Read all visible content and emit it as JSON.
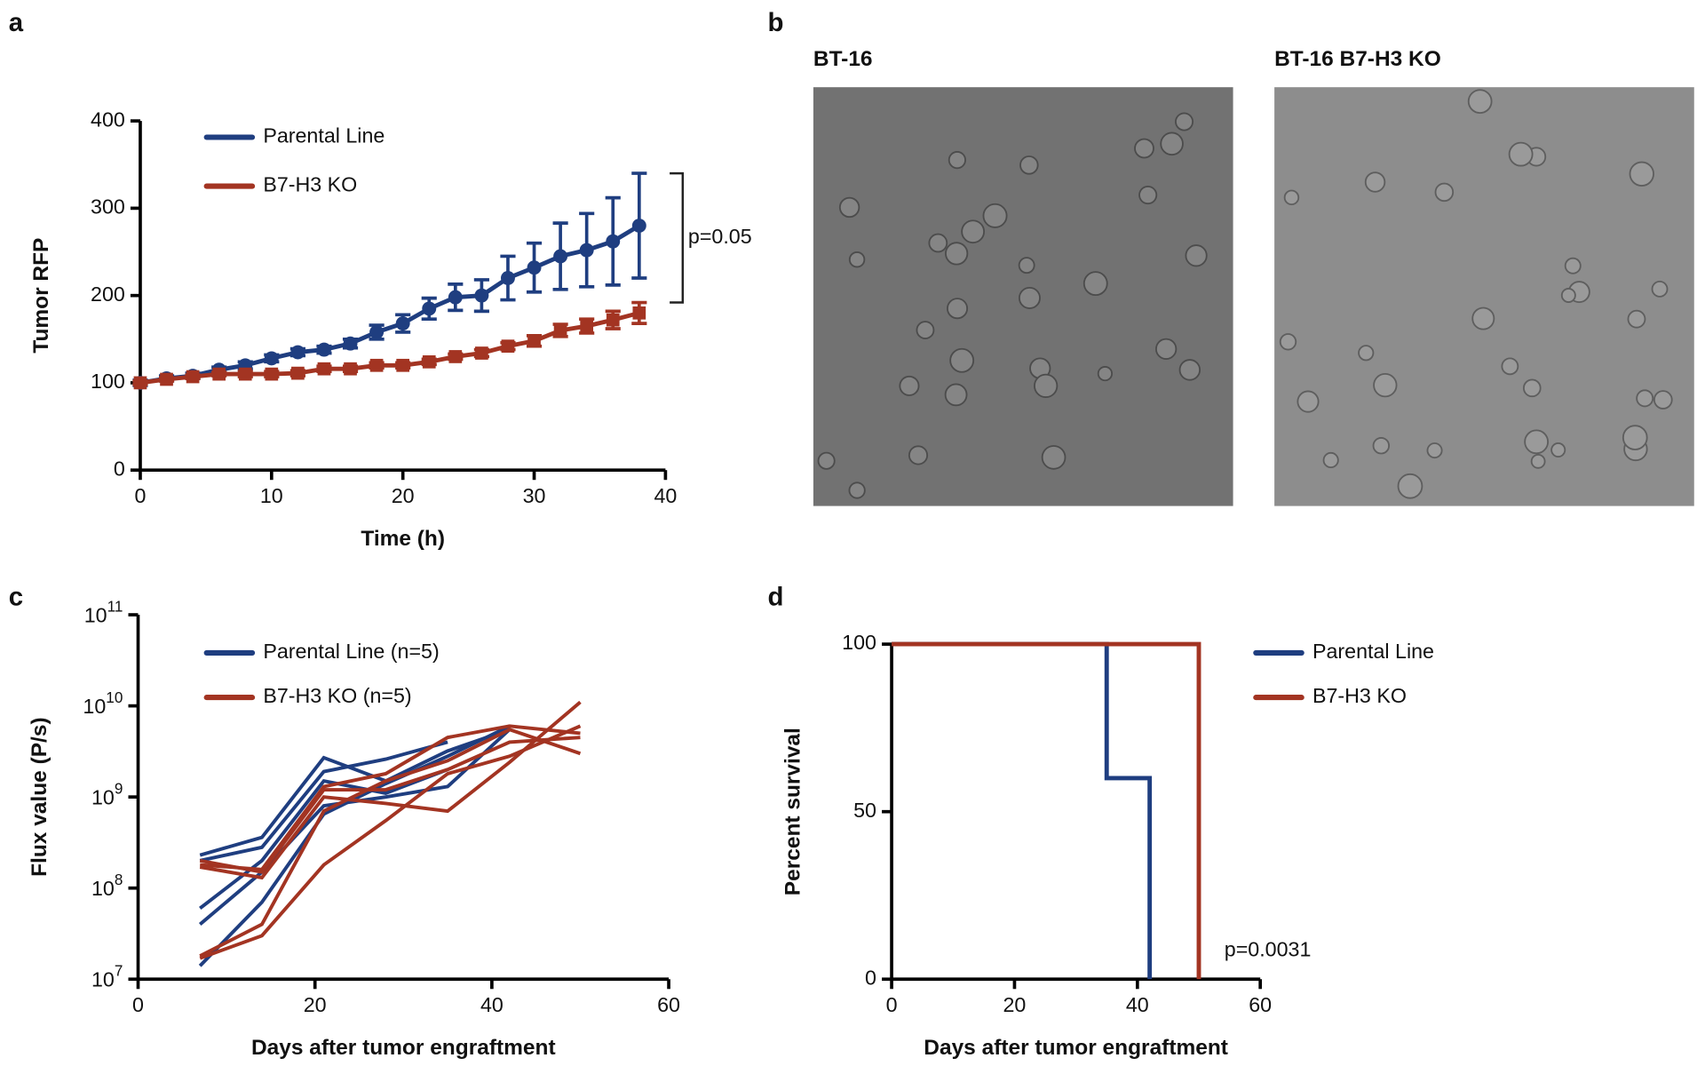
{
  "chart_data": [
    {
      "type": "line",
      "panel": "a",
      "xlabel": "Time (h)",
      "ylabel": "Tumor RFP",
      "x": [
        0,
        2,
        4,
        6,
        8,
        10,
        12,
        14,
        16,
        18,
        20,
        22,
        24,
        26,
        28,
        30,
        32,
        34,
        36,
        38
      ],
      "xlim": [
        0,
        40
      ],
      "xticks": [
        0,
        10,
        20,
        30,
        40
      ],
      "ylim": [
        0,
        400
      ],
      "yticks": [
        0,
        100,
        200,
        300,
        400
      ],
      "annotation": "p=0.05",
      "series": [
        {
          "name": "Parental Line",
          "color": "#1f3e80",
          "marker": "circle",
          "values": [
            100,
            105,
            108,
            115,
            120,
            128,
            135,
            138,
            145,
            158,
            168,
            185,
            198,
            200,
            220,
            232,
            245,
            252,
            262,
            280
          ],
          "errors": [
            3,
            3,
            3,
            3,
            4,
            4,
            4,
            4,
            5,
            8,
            10,
            12,
            15,
            18,
            25,
            28,
            38,
            42,
            50,
            60
          ]
        },
        {
          "name": "B7-H3 KO",
          "color": "#a33422",
          "marker": "square",
          "values": [
            100,
            104,
            107,
            110,
            110,
            110,
            111,
            116,
            116,
            120,
            120,
            124,
            130,
            134,
            142,
            148,
            160,
            165,
            172,
            180
          ],
          "errors": [
            2,
            2,
            2,
            2,
            3,
            3,
            3,
            3,
            3,
            3,
            3,
            3,
            3,
            4,
            4,
            6,
            7,
            8,
            10,
            12
          ]
        }
      ]
    },
    {
      "type": "image",
      "panel": "b",
      "images": [
        {
          "title": "BT-16"
        },
        {
          "title": "BT-16 B7-H3 KO"
        }
      ]
    },
    {
      "type": "line",
      "panel": "c",
      "xlabel": "Days after tumor engraftment",
      "ylabel": "Flux value (P/s)",
      "log_y": true,
      "xlim": [
        0,
        60
      ],
      "xticks": [
        0,
        20,
        40,
        60
      ],
      "ylim": [
        10000000,
        100000000000
      ],
      "yticks": [
        {
          "value": 10000000,
          "label": "10",
          "exp": "7"
        },
        {
          "value": 100000000,
          "label": "10",
          "exp": "8"
        },
        {
          "value": 1000000000,
          "label": "10",
          "exp": "9"
        },
        {
          "value": 10000000000,
          "label": "10",
          "exp": "10"
        },
        {
          "value": 100000000000,
          "label": "10",
          "exp": "11"
        }
      ],
      "series": [
        {
          "name": "Parental Line (n=5)",
          "color": "#1f3e80",
          "x": [
            7,
            14,
            21,
            28,
            35,
            42
          ],
          "lines": [
            [
              230000000,
              360000000,
              2700000000,
              1500000000,
              3200000000,
              5500000000
            ],
            [
              200000000,
              280000000,
              1900000000,
              2600000000,
              4000000000,
              null
            ],
            [
              60000000,
              200000000,
              1500000000,
              1100000000,
              2000000000,
              null
            ],
            [
              40000000,
              150000000,
              800000000,
              1000000000,
              1300000000,
              5500000000
            ],
            [
              14000000,
              70000000,
              650000000,
              1400000000,
              2800000000,
              6000000000
            ]
          ]
        },
        {
          "name": "B7-H3 KO (n=5)",
          "color": "#a33422",
          "x": [
            7,
            14,
            21,
            28,
            35,
            42,
            50
          ],
          "lines": [
            [
              180000000,
              160000000,
              1300000000,
              1800000000,
              4500000000,
              6000000000,
              5000000000
            ],
            [
              170000000,
              130000000,
              1000000000,
              850000000,
              700000000,
              2400000000,
              11000000000
            ],
            [
              18000000,
              40000000,
              700000000,
              1500000000,
              2500000000,
              5500000000,
              3000000000
            ],
            [
              17000000,
              30000000,
              180000000,
              550000000,
              1800000000,
              2800000000,
              6000000000
            ],
            [
              200000000,
              150000000,
              1200000000,
              1200000000,
              2000000000,
              4000000000,
              4500000000
            ]
          ]
        }
      ]
    },
    {
      "type": "step",
      "panel": "d",
      "xlabel": "Days after tumor engraftment",
      "ylabel": "Percent survival",
      "xlim": [
        0,
        60
      ],
      "xticks": [
        0,
        20,
        40,
        60
      ],
      "ylim": [
        0,
        100
      ],
      "yticks": [
        0,
        50,
        100
      ],
      "annotation": "p=0.0031",
      "series": [
        {
          "name": "Parental Line",
          "color": "#1f3e80",
          "x": [
            0,
            35,
            42
          ],
          "values": [
            100,
            60,
            0
          ]
        },
        {
          "name": "B7-H3 KO",
          "color": "#a33422",
          "x": [
            0,
            50
          ],
          "values": [
            100,
            0
          ]
        }
      ]
    }
  ]
}
